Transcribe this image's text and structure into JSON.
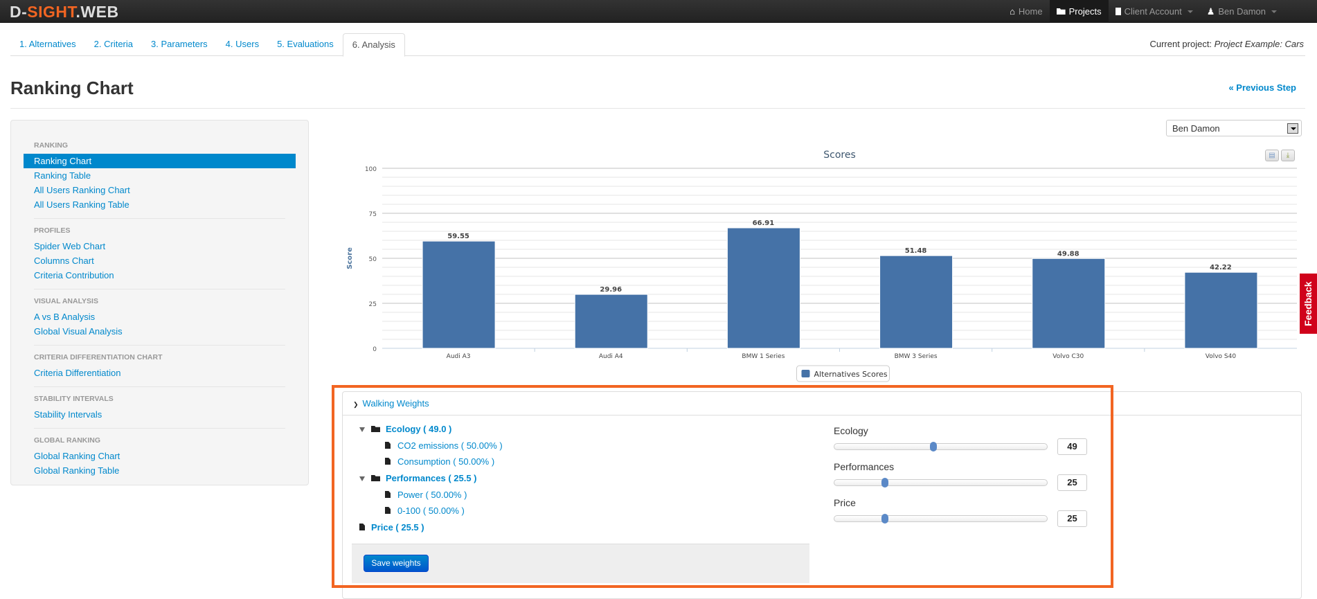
{
  "navbar": {
    "logo": {
      "prefix": "D-",
      "highlight": "SIGHT",
      "suffix": ".WEB"
    },
    "items": [
      {
        "label": "Home",
        "icon": "home-icon"
      },
      {
        "label": "Projects",
        "icon": "folder-icon",
        "active": true
      },
      {
        "label": "Client Account",
        "icon": "book-icon"
      },
      {
        "label": "Ben Damon",
        "icon": "user-icon"
      }
    ]
  },
  "tabs": [
    "1. Alternatives",
    "2. Criteria",
    "3. Parameters",
    "4. Users",
    "5. Evaluations",
    "6. Analysis"
  ],
  "active_tab": "6. Analysis",
  "current_project": {
    "label": "Current project:",
    "name": "Project Example: Cars"
  },
  "page_title": "Ranking Chart",
  "previous_step": "« Previous Step",
  "sidebar": [
    {
      "header": "Ranking",
      "items": [
        "Ranking Chart",
        "Ranking Table",
        "All Users Ranking Chart",
        "All Users Ranking Table"
      ]
    },
    {
      "header": "Profiles",
      "items": [
        "Spider Web Chart",
        "Columns Chart",
        "Criteria Contribution"
      ]
    },
    {
      "header": "Visual Analysis",
      "items": [
        "A vs B Analysis",
        "Global Visual Analysis"
      ]
    },
    {
      "header": "Criteria Differentiation Chart",
      "items": [
        "Criteria Differentiation"
      ]
    },
    {
      "header": "Stability Intervals",
      "items": [
        "Stability Intervals"
      ]
    },
    {
      "header": "Global Ranking",
      "items": [
        "Global Ranking Chart",
        "Global Ranking Table"
      ]
    }
  ],
  "sidebar_active": "Ranking Chart",
  "user_select": "Ben Damon",
  "chart_data": {
    "type": "bar",
    "title": "Scores",
    "ylabel": "Score",
    "xlabel": "",
    "categories": [
      "Audi A3",
      "Audi A4",
      "BMW 1 Series",
      "BMW 3 Series",
      "Volvo C30",
      "Volvo S40"
    ],
    "series": [
      {
        "name": "Alternatives Scores",
        "values": [
          59.55,
          29.96,
          66.91,
          51.48,
          49.88,
          42.22
        ],
        "color": "#4572a7"
      }
    ],
    "ylim": [
      0,
      100
    ],
    "yticks": [
      0,
      25,
      50,
      75,
      100
    ],
    "grid": true,
    "legend": "bottom-center",
    "data_labels": true
  },
  "walking_weights": {
    "title": "Walking Weights",
    "tree": [
      {
        "label": "Ecology ( 49.0 )",
        "children": [
          "CO2 emissions ( 50.00% )",
          "Consumption ( 50.00% )"
        ]
      },
      {
        "label": "Performances ( 25.5 )",
        "children": [
          "Power ( 50.00% )",
          "0-100 ( 50.00% )"
        ]
      },
      {
        "label": "Price ( 25.5 )",
        "children": []
      }
    ],
    "save_label": "Save weights",
    "sliders": [
      {
        "label": "Ecology",
        "value": 49
      },
      {
        "label": "Performances",
        "value": 25
      },
      {
        "label": "Price",
        "value": 25
      }
    ]
  },
  "feedback": "Feedback",
  "colors": {
    "accent": "#0088cc",
    "highlight": "#f26522",
    "bar": "#4572a7",
    "feedback": "#d0021b"
  }
}
